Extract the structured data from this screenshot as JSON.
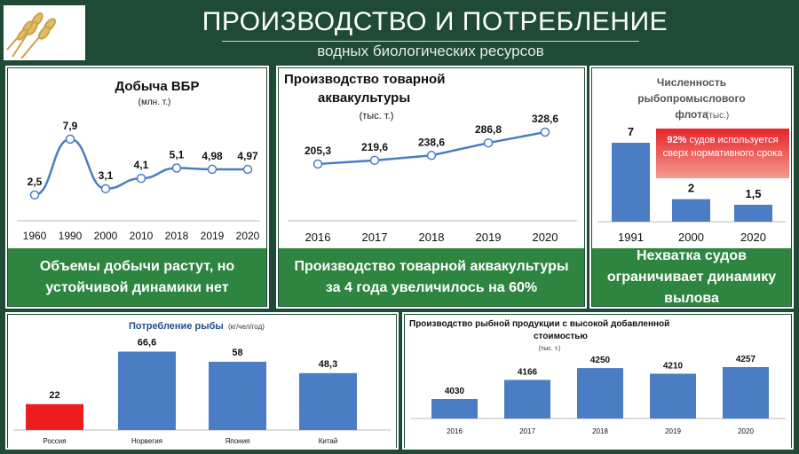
{
  "header": {
    "title": "ПРОИЗВОДСТВО И ПОТРЕБЛЕНИЕ",
    "subtitle": "водных биологических ресурсов"
  },
  "colors": {
    "background": "#1f4a36",
    "caption": "#2e8540",
    "bar": "#4a7dc4",
    "russia": "#ee1c1c",
    "line": "#4a7dc4"
  },
  "captions": {
    "c1": "Объемы добычи растут, но устойчивой динамики нет",
    "c2": "Производство товарной аквакультуры за 4 года увеличилось на 60%",
    "c3": "Нехватка судов ограничивает динамику вылова"
  },
  "badge": {
    "bold": "92%",
    "text": "судов используется сверх нормативного срока"
  },
  "chart_data": [
    {
      "type": "line",
      "title": "Добыча ВБР",
      "subtitle": "(млн. т.)",
      "categories": [
        "1960",
        "1990",
        "2000",
        "2010",
        "2018",
        "2019",
        "2020"
      ],
      "values": [
        2.5,
        7.9,
        3.1,
        4.1,
        5.1,
        4.98,
        4.97
      ],
      "labels": [
        "2,5",
        "7,9",
        "3,1",
        "4,1",
        "5,1",
        "4,98",
        "4,97"
      ],
      "ylim": [
        0,
        10
      ]
    },
    {
      "type": "line",
      "title": "Производство товарной аквакультуры",
      "subtitle": "(тыс. т.)",
      "categories": [
        "2016",
        "2017",
        "2018",
        "2019",
        "2020"
      ],
      "values": [
        205.3,
        219.6,
        238.6,
        286.8,
        328.6
      ],
      "labels": [
        "205,3",
        "219,6",
        "238,6",
        "286,8",
        "328,6"
      ],
      "ylim": [
        0,
        400
      ]
    },
    {
      "type": "bar",
      "title": "Численность рыбопромыслового флота",
      "subtitle": "(тыс.)",
      "categories": [
        "1991",
        "2000",
        "2020"
      ],
      "values": [
        7,
        2,
        1.5
      ],
      "labels": [
        "7",
        "2",
        "1,5"
      ],
      "ylim": [
        0,
        7
      ]
    },
    {
      "type": "bar",
      "title": "Потребление рыбы",
      "subtitle": "(кг/чел/год)",
      "categories": [
        "Россия",
        "Норвегия",
        "Япония",
        "Китай"
      ],
      "values": [
        22,
        66.6,
        58,
        48.3
      ],
      "labels": [
        "22",
        "66,6",
        "58",
        "48,3"
      ],
      "ylim": [
        0,
        70
      ]
    },
    {
      "type": "bar",
      "title": "Производство рыбной продукции с высокой добавленной стоимостью",
      "subtitle": "(тыс. т.)",
      "categories": [
        "2016",
        "2017",
        "2018",
        "2019",
        "2020"
      ],
      "values": [
        4030,
        4166,
        4250,
        4210,
        4257
      ],
      "labels": [
        "4030",
        "4166",
        "4250",
        "4210",
        "4257"
      ],
      "ylim": [
        3900,
        4300
      ]
    }
  ]
}
